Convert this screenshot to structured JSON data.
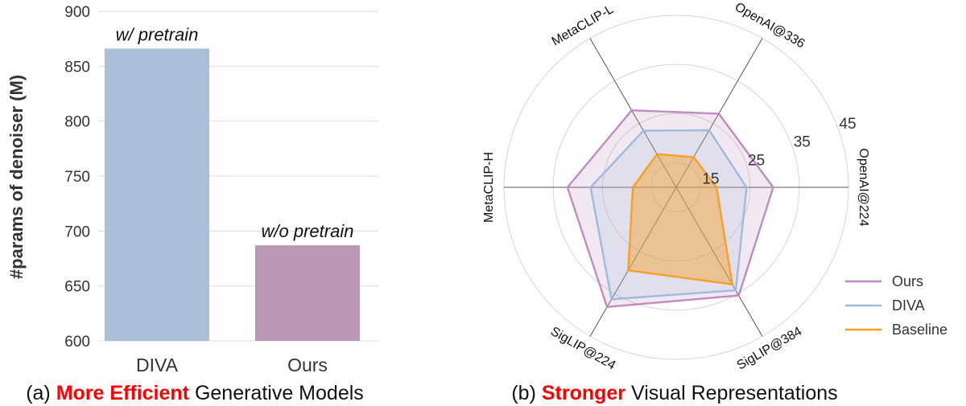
{
  "chart_data": [
    {
      "type": "bar",
      "categories": [
        "DIVA",
        "Ours"
      ],
      "values": [
        866,
        687
      ],
      "bar_labels": [
        "w/  pretrain",
        "w/o pretrain"
      ],
      "colors": [
        "#abbfd8",
        "#b998b3"
      ],
      "ylabel": "#params of denoiser (M)",
      "ylim": [
        600,
        900
      ],
      "yticks": [
        "600",
        "650",
        "700",
        "750",
        "800",
        "850",
        "900"
      ],
      "grid": true,
      "caption_prefix": "(a) ",
      "caption_emph": "More Efficient",
      "caption_rest": " Generative Models"
    },
    {
      "type": "radar",
      "axes": [
        "OpenAI@224",
        "OpenAI@336",
        "MetaCLIP-L",
        "MetaCLIP-H",
        "SigLIP@224",
        "SigLIP@384"
      ],
      "rlim": [
        10,
        45
      ],
      "rticks": [
        "15",
        "25",
        "35",
        "45"
      ],
      "series": [
        {
          "name": "Ours",
          "color": "#c08cc0",
          "values": [
            29.7,
            27.3,
            28.1,
            32.1,
            38.1,
            35.4
          ]
        },
        {
          "name": "DIVA",
          "color": "#9ebbdd",
          "values": [
            24.3,
            23.4,
            23.3,
            27.4,
            36.3,
            34.2
          ]
        },
        {
          "name": "Baseline",
          "color": "#f7a026",
          "values": [
            18.2,
            17.1,
            17.8,
            18.8,
            29.5,
            32.8
          ]
        }
      ],
      "legend_position": "bottom-right",
      "caption_prefix": "(b) ",
      "caption_emph": "Stronger",
      "caption_rest": " Visual Representations"
    }
  ]
}
